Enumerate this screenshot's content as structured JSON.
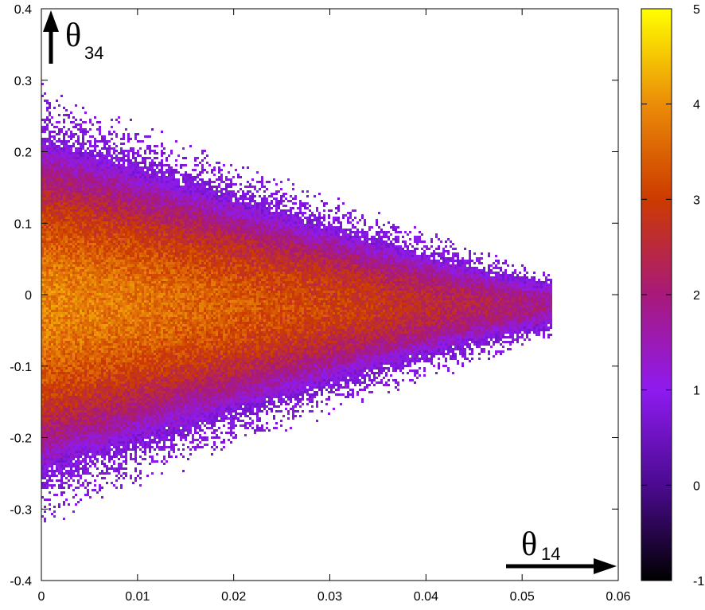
{
  "chart_data": {
    "type": "heatmap",
    "title": "",
    "x": {
      "label_symbol": "θ",
      "label_subscript": "14",
      "range": [
        0,
        0.06
      ],
      "ticks": [
        {
          "value": 0,
          "label": "0"
        },
        {
          "value": 0.01,
          "label": "0.01"
        },
        {
          "value": 0.02,
          "label": "0.02"
        },
        {
          "value": 0.03,
          "label": "0.03"
        },
        {
          "value": 0.04,
          "label": "0.04"
        },
        {
          "value": 0.05,
          "label": "0.05"
        },
        {
          "value": 0.06,
          "label": "0.06"
        }
      ]
    },
    "y": {
      "label_symbol": "θ",
      "label_subscript": "34",
      "range": [
        -0.4,
        0.4
      ],
      "ticks": [
        {
          "value": -0.4,
          "label": "-0.4"
        },
        {
          "value": -0.3,
          "label": "-0.3"
        },
        {
          "value": -0.2,
          "label": "-0.2"
        },
        {
          "value": -0.1,
          "label": "-0.1"
        },
        {
          "value": 0,
          "label": "0"
        },
        {
          "value": 0.1,
          "label": "0.1"
        },
        {
          "value": 0.2,
          "label": "0.2"
        },
        {
          "value": 0.3,
          "label": "0.3"
        },
        {
          "value": 0.4,
          "label": "0.4"
        }
      ]
    },
    "colorbar": {
      "range": [
        -1,
        5
      ],
      "ticks": [
        {
          "value": -1,
          "label": "-1"
        },
        {
          "value": 0,
          "label": "0"
        },
        {
          "value": 1,
          "label": "1"
        },
        {
          "value": 2,
          "label": "2"
        },
        {
          "value": 3,
          "label": "3"
        },
        {
          "value": 4,
          "label": "4"
        },
        {
          "value": 5,
          "label": "5"
        }
      ],
      "colors": [
        "#000000",
        "#4b0a90",
        "#8e1bf0",
        "#a8197a",
        "#cc3a00",
        "#eb8c08",
        "#ffff00"
      ],
      "placement": "right"
    },
    "density_model": {
      "peak_log_density": 3.9,
      "core_half_width_y": [
        0.19,
        0.04
      ],
      "x_extent_at_y0": 0.052,
      "y_extent_at_x0": [
        -0.34,
        0.33
      ]
    },
    "grid": false,
    "legend": "none"
  }
}
